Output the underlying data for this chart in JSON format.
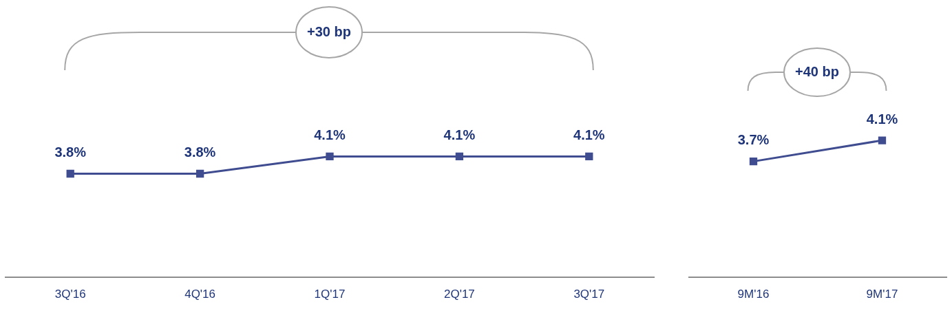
{
  "chart_data": [
    {
      "type": "line",
      "categories": [
        "3Q'16",
        "4Q'16",
        "1Q'17",
        "2Q'17",
        "3Q'17"
      ],
      "values": [
        3.8,
        3.8,
        4.1,
        4.1,
        4.1
      ],
      "value_labels": [
        "3.8%",
        "3.8%",
        "4.1%",
        "4.1%",
        "4.1%"
      ],
      "color": "#3f4c8f",
      "marker": "square",
      "line_style": "solid",
      "tick_labels": "x",
      "annotations": [
        "+30 bp"
      ]
    },
    {
      "type": "line",
      "categories": [
        "9M'16",
        "9M'17"
      ],
      "values": [
        3.7,
        4.1
      ],
      "value_labels": [
        "3.7%",
        "4.1%"
      ],
      "color": "#3f4c8f",
      "marker": "square",
      "line_style": "solid",
      "tick_labels": "x",
      "annotations": [
        "+40 bp"
      ]
    }
  ]
}
